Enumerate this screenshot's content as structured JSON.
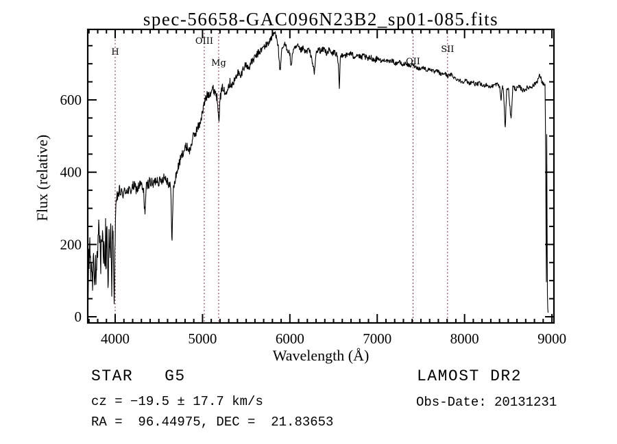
{
  "chart_data": {
    "type": "line",
    "title": "spec-56658-GAC096N23B2_sp01-085.fits",
    "xlabel": "Wavelength (Å)",
    "ylabel": "Flux (relative)",
    "xlim": [
      3686,
      9023
    ],
    "ylim": [
      -17,
      795
    ],
    "xticks": [
      4000,
      5000,
      6000,
      7000,
      8000,
      9000
    ],
    "x_minor_step": 100,
    "yticks": [
      0,
      200,
      400,
      600
    ],
    "y_minor_step": 50,
    "grid": false,
    "line_color": "#000000",
    "marker_color": "#7a2f3f",
    "spectral_lines": [
      {
        "label": "H",
        "position_angstrom": 4000,
        "label_y": 80
      },
      {
        "label": "OIII",
        "position_angstrom": 5020,
        "label_y": 64
      },
      {
        "label": "Mg",
        "position_angstrom": 5185,
        "label_y": 96
      },
      {
        "label": "OII",
        "position_angstrom": 7410,
        "label_y": 94
      },
      {
        "label": "SII",
        "position_angstrom": 7805,
        "label_y": 76
      }
    ],
    "series": [
      {
        "name": "spectrum",
        "points": [
          [
            3690,
            45
          ],
          [
            3693,
            60
          ],
          [
            3696,
            235
          ],
          [
            3700,
            120
          ],
          [
            3705,
            180
          ],
          [
            3710,
            215
          ],
          [
            3716,
            150
          ],
          [
            3722,
            100
          ],
          [
            3728,
            170
          ],
          [
            3734,
            120
          ],
          [
            3740,
            88
          ],
          [
            3746,
            135
          ],
          [
            3752,
            185
          ],
          [
            3758,
            158
          ],
          [
            3764,
            112
          ],
          [
            3770,
            98
          ],
          [
            3776,
            165
          ],
          [
            3782,
            88
          ],
          [
            3788,
            128
          ],
          [
            3794,
            168
          ],
          [
            3800,
            140
          ],
          [
            3806,
            232
          ],
          [
            3812,
            252
          ],
          [
            3818,
            212
          ],
          [
            3824,
            255
          ],
          [
            3830,
            168
          ],
          [
            3836,
            128
          ],
          [
            3842,
            245
          ],
          [
            3848,
            182
          ],
          [
            3854,
            255
          ],
          [
            3860,
            212
          ],
          [
            3866,
            128
          ],
          [
            3872,
            248
          ],
          [
            3878,
            178
          ],
          [
            3884,
            98
          ],
          [
            3890,
            248
          ],
          [
            3896,
            62
          ],
          [
            3902,
            242
          ],
          [
            3908,
            232
          ],
          [
            3914,
            128
          ],
          [
            3920,
            100
          ],
          [
            3926,
            195
          ],
          [
            3932,
            240
          ],
          [
            3938,
            150
          ],
          [
            3944,
            205
          ],
          [
            3950,
            245
          ],
          [
            3956,
            120
          ],
          [
            3962,
            70
          ],
          [
            3968,
            230
          ],
          [
            3974,
            245
          ],
          [
            3980,
            150
          ],
          [
            3986,
            90
          ],
          [
            3990,
            42
          ],
          [
            3996,
            170
          ],
          [
            4004,
            275
          ],
          [
            4015,
            318
          ],
          [
            4030,
            338
          ],
          [
            4050,
            345
          ],
          [
            4090,
            340
          ],
          [
            4130,
            352
          ],
          [
            4170,
            347
          ],
          [
            4210,
            362
          ],
          [
            4250,
            352
          ],
          [
            4290,
            368
          ],
          [
            4325,
            345
          ],
          [
            4340,
            288
          ],
          [
            4356,
            358
          ],
          [
            4395,
            375
          ],
          [
            4435,
            365
          ],
          [
            4475,
            382
          ],
          [
            4515,
            372
          ],
          [
            4555,
            388
          ],
          [
            4595,
            380
          ],
          [
            4635,
            358
          ],
          [
            4650,
            212
          ],
          [
            4666,
            352
          ],
          [
            4700,
            395
          ],
          [
            4740,
            430
          ],
          [
            4780,
            458
          ],
          [
            4820,
            472
          ],
          [
            4855,
            458
          ],
          [
            4885,
            492
          ],
          [
            4925,
            512
          ],
          [
            4965,
            532
          ],
          [
            5000,
            565
          ],
          [
            5030,
            600
          ],
          [
            5060,
            615
          ],
          [
            5090,
            622
          ],
          [
            5120,
            630
          ],
          [
            5150,
            622
          ],
          [
            5172,
            598
          ],
          [
            5188,
            550
          ],
          [
            5205,
            610
          ],
          [
            5235,
            638
          ],
          [
            5258,
            612
          ],
          [
            5285,
            638
          ],
          [
            5315,
            648
          ],
          [
            5345,
            642
          ],
          [
            5375,
            658
          ],
          [
            5405,
            678
          ],
          [
            5435,
            662
          ],
          [
            5465,
            688
          ],
          [
            5495,
            698
          ],
          [
            5525,
            688
          ],
          [
            5555,
            702
          ],
          [
            5585,
            712
          ],
          [
            5615,
            722
          ],
          [
            5645,
            732
          ],
          [
            5675,
            738
          ],
          [
            5705,
            748
          ],
          [
            5735,
            752
          ],
          [
            5765,
            762
          ],
          [
            5795,
            775
          ],
          [
            5825,
            786
          ],
          [
            5850,
            778
          ],
          [
            5868,
            742
          ],
          [
            5880,
            700
          ],
          [
            5891,
            670
          ],
          [
            5902,
            728
          ],
          [
            5925,
            748
          ],
          [
            5950,
            752
          ],
          [
            5975,
            738
          ],
          [
            6000,
            728
          ],
          [
            6013,
            686
          ],
          [
            6030,
            732
          ],
          [
            6060,
            742
          ],
          [
            6090,
            748
          ],
          [
            6120,
            736
          ],
          [
            6150,
            742
          ],
          [
            6180,
            730
          ],
          [
            6210,
            740
          ],
          [
            6240,
            726
          ],
          [
            6262,
            700
          ],
          [
            6281,
            670
          ],
          [
            6298,
            728
          ],
          [
            6330,
            740
          ],
          [
            6360,
            734
          ],
          [
            6390,
            742
          ],
          [
            6420,
            730
          ],
          [
            6450,
            738
          ],
          [
            6480,
            726
          ],
          [
            6510,
            734
          ],
          [
            6540,
            722
          ],
          [
            6556,
            690
          ],
          [
            6565,
            626
          ],
          [
            6578,
            718
          ],
          [
            6610,
            728
          ],
          [
            6650,
            722
          ],
          [
            6690,
            730
          ],
          [
            6730,
            720
          ],
          [
            6770,
            726
          ],
          [
            6810,
            716
          ],
          [
            6850,
            722
          ],
          [
            6890,
            712
          ],
          [
            6930,
            718
          ],
          [
            6970,
            710
          ],
          [
            7010,
            716
          ],
          [
            7050,
            706
          ],
          [
            7090,
            712
          ],
          [
            7130,
            704
          ],
          [
            7170,
            710
          ],
          [
            7210,
            700
          ],
          [
            7250,
            706
          ],
          [
            7290,
            696
          ],
          [
            7330,
            702
          ],
          [
            7370,
            692
          ],
          [
            7410,
            698
          ],
          [
            7450,
            690
          ],
          [
            7490,
            686
          ],
          [
            7530,
            690
          ],
          [
            7570,
            682
          ],
          [
            7610,
            686
          ],
          [
            7650,
            676
          ],
          [
            7690,
            680
          ],
          [
            7730,
            670
          ],
          [
            7770,
            674
          ],
          [
            7810,
            666
          ],
          [
            7850,
            670
          ],
          [
            7890,
            660
          ],
          [
            7930,
            656
          ],
          [
            7970,
            650
          ],
          [
            8010,
            654
          ],
          [
            8050,
            646
          ],
          [
            8090,
            650
          ],
          [
            8130,
            642
          ],
          [
            8170,
            646
          ],
          [
            8210,
            638
          ],
          [
            8250,
            643
          ],
          [
            8290,
            635
          ],
          [
            8330,
            640
          ],
          [
            8370,
            644
          ],
          [
            8400,
            638
          ],
          [
            8418,
            598
          ],
          [
            8432,
            640
          ],
          [
            8448,
            618
          ],
          [
            8465,
            512
          ],
          [
            8482,
            636
          ],
          [
            8505,
            626
          ],
          [
            8532,
            542
          ],
          [
            8552,
            636
          ],
          [
            8590,
            630
          ],
          [
            8630,
            636
          ],
          [
            8670,
            626
          ],
          [
            8710,
            632
          ],
          [
            8750,
            636
          ],
          [
            8790,
            640
          ],
          [
            8830,
            652
          ],
          [
            8862,
            668
          ],
          [
            8885,
            650
          ],
          [
            8905,
            644
          ],
          [
            8922,
            638
          ],
          [
            8930,
            400
          ],
          [
            8936,
            28
          ],
          [
            8941,
            545
          ],
          [
            8947,
            78
          ],
          [
            8953,
            12
          ],
          [
            8958,
            6
          ]
        ]
      }
    ],
    "noise_regions": [
      {
        "from": 3690,
        "to": 4000,
        "amp": 32
      },
      {
        "from": 4000,
        "to": 4060,
        "amp": 20
      },
      {
        "from": 4060,
        "to": 4690,
        "amp": 16
      },
      {
        "from": 4690,
        "to": 5360,
        "amp": 14
      },
      {
        "from": 5360,
        "to": 5950,
        "amp": 11
      },
      {
        "from": 5950,
        "to": 7000,
        "amp": 9
      },
      {
        "from": 7000,
        "to": 8400,
        "amp": 6
      },
      {
        "from": 8400,
        "to": 8926,
        "amp": 7
      },
      {
        "from": 8926,
        "to": 8958,
        "amp": 4
      }
    ]
  },
  "annotations": {
    "object_type": "STAR   G5",
    "cz": "cz = −19.5 ± 17.7 km/s",
    "ra_dec": "RA =  96.44975, DEC =  21.83653",
    "survey": "LAMOST DR2",
    "obs_date": "Obs-Date: 20131231"
  }
}
